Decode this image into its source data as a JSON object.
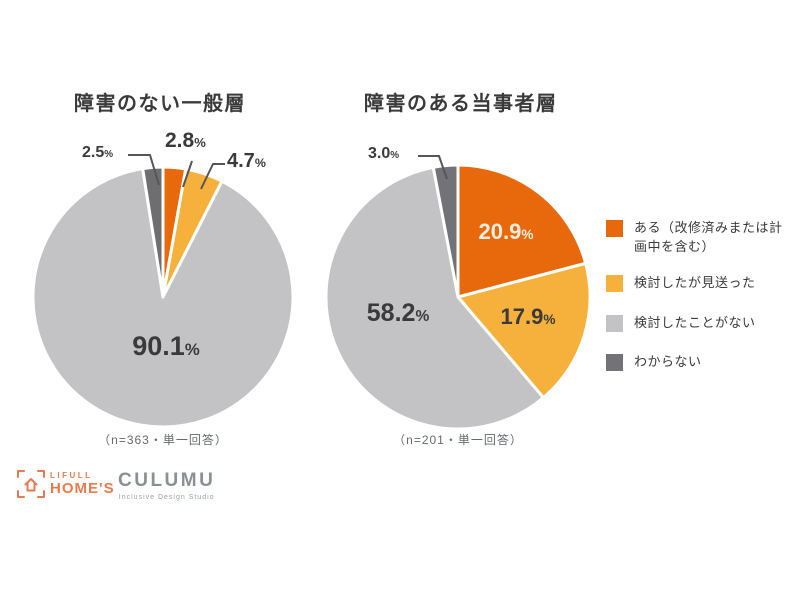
{
  "chart_data": [
    {
      "type": "pie",
      "title": "障害のない一般層",
      "caption": "（n=363・単一回答）",
      "categories": [
        "ある（改修済みまたは計画中を含む）",
        "検討したが見送った",
        "検討したことがない",
        "わからない"
      ],
      "values": [
        2.8,
        4.7,
        90.1,
        2.5
      ],
      "colors": [
        "#E8690B",
        "#F5B13C",
        "#C3C3C5",
        "#6E6E70"
      ],
      "start_angle": "12-oclock",
      "direction": "clockwise",
      "slice_labels": [
        {
          "num": "2.8",
          "unit": "%"
        },
        {
          "num": "4.7",
          "unit": "%"
        },
        {
          "num": "90.1",
          "unit": "%"
        },
        {
          "num": "2.5",
          "unit": "%"
        }
      ]
    },
    {
      "type": "pie",
      "title": "障害のある当事者層",
      "caption": "（n=201・単一回答）",
      "categories": [
        "ある（改修済みまたは計画中を含む）",
        "検討したが見送った",
        "検討したことがない",
        "わからない"
      ],
      "values": [
        20.9,
        17.9,
        58.2,
        3.0
      ],
      "colors": [
        "#E8690B",
        "#F5B13C",
        "#C3C3C5",
        "#737377"
      ],
      "start_angle": "12-oclock",
      "direction": "clockwise",
      "slice_labels": [
        {
          "num": "20.9",
          "unit": "%"
        },
        {
          "num": "17.9",
          "unit": "%"
        },
        {
          "num": "58.2",
          "unit": "%"
        },
        {
          "num": "3.0",
          "unit": "%"
        }
      ]
    }
  ],
  "legend": {
    "items": [
      {
        "label": "ある（改修済みまたは計画中を含む）",
        "color": "#E8690B"
      },
      {
        "label": "検討したが見送った",
        "color": "#F5B13C"
      },
      {
        "label": "検討したことがない",
        "color": "#C3C3C5"
      },
      {
        "label": "わからない",
        "color": "#737377"
      }
    ]
  },
  "footer": {
    "lifull_label_top": "LIFULL",
    "lifull_label_bottom": "HOME'S",
    "lifull_color": "#E87B4E",
    "culumu_label": "CULUMU",
    "culumu_tagline": "Inclusive Design Studio",
    "culumu_color": "#8A9095"
  }
}
